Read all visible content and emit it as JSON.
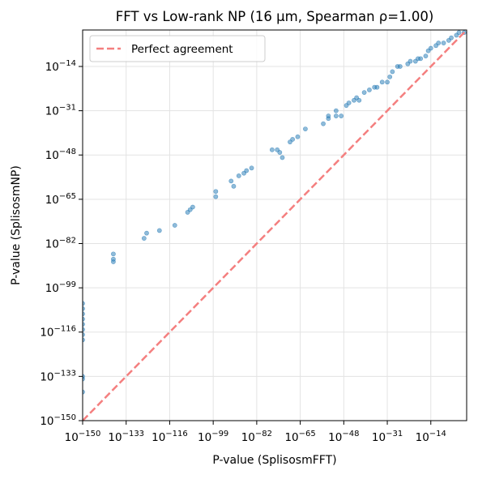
{
  "chart_data": {
    "type": "scatter",
    "title": "FFT vs Low-rank NP (16 µm, Spearman ρ=1.00)",
    "x_label": "P-value (SplisosmFFT)",
    "y_label": "P-value (SplisosmNP)",
    "log_x": true,
    "log_y": true,
    "grid": true,
    "legend": "upper left",
    "xlim": [
      1e-150,
      1
    ],
    "ylim": [
      1e-150,
      1
    ],
    "xticks": [
      {
        "value": 1e-150,
        "label": "10−150"
      },
      {
        "value": 1e-133,
        "label": "10−133"
      },
      {
        "value": 1e-116,
        "label": "10−116"
      },
      {
        "value": 1e-99,
        "label": "10−99"
      },
      {
        "value": 1e-82,
        "label": "10−82"
      },
      {
        "value": 1e-65,
        "label": "10−65"
      },
      {
        "value": 1e-48,
        "label": "10−48"
      },
      {
        "value": 1e-31,
        "label": "10−31"
      },
      {
        "value": 1e-14,
        "label": "10−14"
      }
    ],
    "yticks": [
      {
        "value": 1e-150,
        "label": "10−150"
      },
      {
        "value": 1e-133,
        "label": "10−133"
      },
      {
        "value": 1e-116,
        "label": "10−116"
      },
      {
        "value": 1e-99,
        "label": "10−99"
      },
      {
        "value": 1e-82,
        "label": "10−82"
      },
      {
        "value": 1e-65,
        "label": "10−65"
      },
      {
        "value": 1e-48,
        "label": "10−48"
      },
      {
        "value": 1e-31,
        "label": "10−31"
      },
      {
        "value": 1e-14,
        "label": "10−14"
      }
    ],
    "series": [
      {
        "type": "scatter",
        "color": "#1f77b4",
        "x": [
          1e-150,
          1e-150,
          1e-150,
          1e-150,
          1e-150,
          1e-150,
          1e-150,
          1e-150,
          1e-150,
          1e-150,
          1e-150,
          1e-138,
          1e-138,
          1e-138,
          1e-126,
          1e-125,
          1e-120,
          1e-114,
          1e-109,
          1e-108,
          1e-107,
          1e-98,
          1e-98,
          1e-92,
          1e-91,
          1e-89,
          1e-87,
          1e-86,
          1e-84,
          1e-76,
          1e-74,
          1e-73,
          1e-72,
          1e-69,
          1e-68,
          1e-66,
          1e-63,
          1e-56,
          1e-54,
          1e-54,
          1e-51,
          1e-51,
          1e-49,
          1e-47,
          1e-46,
          1e-44,
          1e-43,
          1e-42,
          1e-40,
          1e-38,
          1e-36,
          1e-35,
          1e-33,
          1e-31,
          1e-30,
          1e-29,
          1e-27,
          1e-26,
          1e-23,
          1e-22,
          1e-20,
          1e-19,
          1e-18,
          1e-16,
          1e-15,
          1e-14,
          1e-12,
          1e-11,
          1e-09,
          1e-07,
          1e-06,
          0.0001,
          0.001,
          0.1
        ],
        "y": [
          1e-105,
          1e-107,
          1e-109,
          1e-111,
          1e-113,
          1e-115,
          1e-117,
          1e-119,
          1e-133,
          1e-134,
          1e-139,
          1e-86,
          1e-88,
          1e-89,
          1e-80,
          1e-78,
          1e-77,
          1e-75,
          1e-70,
          1e-69,
          1e-68,
          1e-62,
          1e-64,
          1e-58,
          1e-60,
          1e-56,
          1e-55,
          1e-54,
          1e-53,
          1e-46,
          1e-46,
          1e-47,
          1e-49,
          1e-43,
          1e-42,
          1e-41,
          1e-38,
          1e-36,
          1e-33,
          1e-34,
          1e-33,
          1e-31,
          1e-33,
          1e-29,
          1e-28,
          1e-27,
          1e-26,
          1e-27,
          1e-24,
          1e-23,
          1e-22,
          1e-22,
          1e-20,
          1e-20,
          1e-18,
          1e-16,
          1e-14,
          1e-14,
          1e-13,
          1e-12,
          1e-12,
          1e-11,
          1e-11,
          1e-10,
          1e-08,
          1e-07,
          1e-06,
          1e-05,
          1e-05,
          0.0001,
          0.001,
          0.01,
          0.1,
          0.1
        ]
      },
      {
        "type": "line",
        "name": "Perfect agreement",
        "color": "#f47f7f",
        "style": "dashed",
        "x": [
          1e-150,
          1
        ],
        "y": [
          1e-150,
          1
        ]
      }
    ]
  }
}
